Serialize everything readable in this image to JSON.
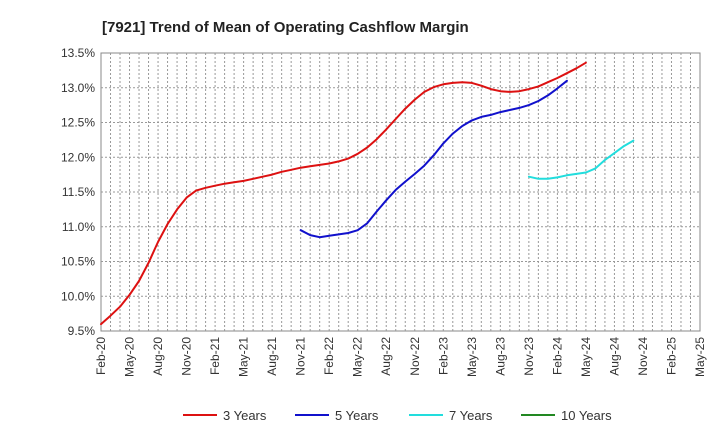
{
  "chart_data": {
    "type": "line",
    "title": "[7921]  Trend of Mean of Operating Cashflow Margin",
    "xlabel": "",
    "ylabel": "",
    "ylim": [
      9.5,
      13.5
    ],
    "y_ticks": [
      "9.5%",
      "10.0%",
      "10.5%",
      "11.0%",
      "11.5%",
      "12.0%",
      "12.5%",
      "13.0%",
      "13.5%"
    ],
    "x_ticks": [
      "Feb-20",
      "May-20",
      "Aug-20",
      "Nov-20",
      "Feb-21",
      "May-21",
      "Aug-21",
      "Nov-21",
      "Feb-22",
      "May-22",
      "Aug-22",
      "Nov-22",
      "Feb-23",
      "May-23",
      "Aug-23",
      "Nov-23",
      "Feb-24",
      "May-24",
      "Aug-24",
      "Nov-24",
      "Feb-25",
      "May-25"
    ],
    "grid": true,
    "legend_position": "bottom",
    "series": [
      {
        "name": "3 Years",
        "color": "#dd1111",
        "points": [
          [
            "Feb-20",
            9.6
          ],
          [
            "Mar-20",
            9.72
          ],
          [
            "Apr-20",
            9.85
          ],
          [
            "May-20",
            10.02
          ],
          [
            "Jun-20",
            10.22
          ],
          [
            "Jul-20",
            10.48
          ],
          [
            "Aug-20",
            10.78
          ],
          [
            "Sep-20",
            11.04
          ],
          [
            "Oct-20",
            11.25
          ],
          [
            "Nov-20",
            11.42
          ],
          [
            "Dec-20",
            11.52
          ],
          [
            "Jan-21",
            11.56
          ],
          [
            "Feb-21",
            11.59
          ],
          [
            "Mar-21",
            11.62
          ],
          [
            "Apr-21",
            11.64
          ],
          [
            "May-21",
            11.66
          ],
          [
            "Jun-21",
            11.69
          ],
          [
            "Jul-21",
            11.72
          ],
          [
            "Aug-21",
            11.75
          ],
          [
            "Sep-21",
            11.79
          ],
          [
            "Oct-21",
            11.82
          ],
          [
            "Nov-21",
            11.85
          ],
          [
            "Dec-21",
            11.87
          ],
          [
            "Jan-22",
            11.89
          ],
          [
            "Feb-22",
            11.91
          ],
          [
            "Mar-22",
            11.94
          ],
          [
            "Apr-22",
            11.98
          ],
          [
            "May-22",
            12.05
          ],
          [
            "Jun-22",
            12.14
          ],
          [
            "Jul-22",
            12.26
          ],
          [
            "Aug-22",
            12.4
          ],
          [
            "Sep-22",
            12.55
          ],
          [
            "Oct-22",
            12.7
          ],
          [
            "Nov-22",
            12.83
          ],
          [
            "Dec-22",
            12.94
          ],
          [
            "Jan-23",
            13.01
          ],
          [
            "Feb-23",
            13.05
          ],
          [
            "Mar-23",
            13.07
          ],
          [
            "Apr-23",
            13.08
          ],
          [
            "May-23",
            13.07
          ],
          [
            "Jun-23",
            13.03
          ],
          [
            "Jul-23",
            12.98
          ],
          [
            "Aug-23",
            12.95
          ],
          [
            "Sep-23",
            12.94
          ],
          [
            "Oct-23",
            12.95
          ],
          [
            "Nov-23",
            12.98
          ],
          [
            "Dec-23",
            13.02
          ],
          [
            "Jan-24",
            13.08
          ],
          [
            "Feb-24",
            13.14
          ],
          [
            "Mar-24",
            13.21
          ],
          [
            "Apr-24",
            13.28
          ],
          [
            "May-24",
            13.36
          ]
        ]
      },
      {
        "name": "5 Years",
        "color": "#1111cc",
        "points": [
          [
            "Nov-21",
            10.95
          ],
          [
            "Dec-21",
            10.88
          ],
          [
            "Jan-22",
            10.85
          ],
          [
            "Feb-22",
            10.87
          ],
          [
            "Mar-22",
            10.89
          ],
          [
            "Apr-22",
            10.91
          ],
          [
            "May-22",
            10.95
          ],
          [
            "Jun-22",
            11.05
          ],
          [
            "Jul-22",
            11.22
          ],
          [
            "Aug-22",
            11.38
          ],
          [
            "Sep-22",
            11.53
          ],
          [
            "Oct-22",
            11.65
          ],
          [
            "Nov-22",
            11.76
          ],
          [
            "Dec-22",
            11.88
          ],
          [
            "Jan-23",
            12.03
          ],
          [
            "Feb-23",
            12.2
          ],
          [
            "Mar-23",
            12.34
          ],
          [
            "Apr-23",
            12.45
          ],
          [
            "May-23",
            12.53
          ],
          [
            "Jun-23",
            12.58
          ],
          [
            "Jul-23",
            12.61
          ],
          [
            "Aug-23",
            12.65
          ],
          [
            "Sep-23",
            12.68
          ],
          [
            "Oct-23",
            12.71
          ],
          [
            "Nov-23",
            12.75
          ],
          [
            "Dec-23",
            12.81
          ],
          [
            "Jan-24",
            12.89
          ],
          [
            "Feb-24",
            12.99
          ],
          [
            "Mar-24",
            13.1
          ]
        ]
      },
      {
        "name": "7 Years",
        "color": "#22dddd",
        "points": [
          [
            "Nov-23",
            11.72
          ],
          [
            "Dec-23",
            11.69
          ],
          [
            "Jan-24",
            11.69
          ],
          [
            "Feb-24",
            11.71
          ],
          [
            "Mar-24",
            11.74
          ],
          [
            "Apr-24",
            11.76
          ],
          [
            "May-24",
            11.78
          ],
          [
            "Jun-24",
            11.84
          ],
          [
            "Jul-24",
            11.96
          ],
          [
            "Aug-24",
            12.06
          ],
          [
            "Sep-24",
            12.16
          ],
          [
            "Oct-24",
            12.24
          ]
        ]
      },
      {
        "name": "10 Years",
        "color": "#228822",
        "points": []
      }
    ]
  }
}
